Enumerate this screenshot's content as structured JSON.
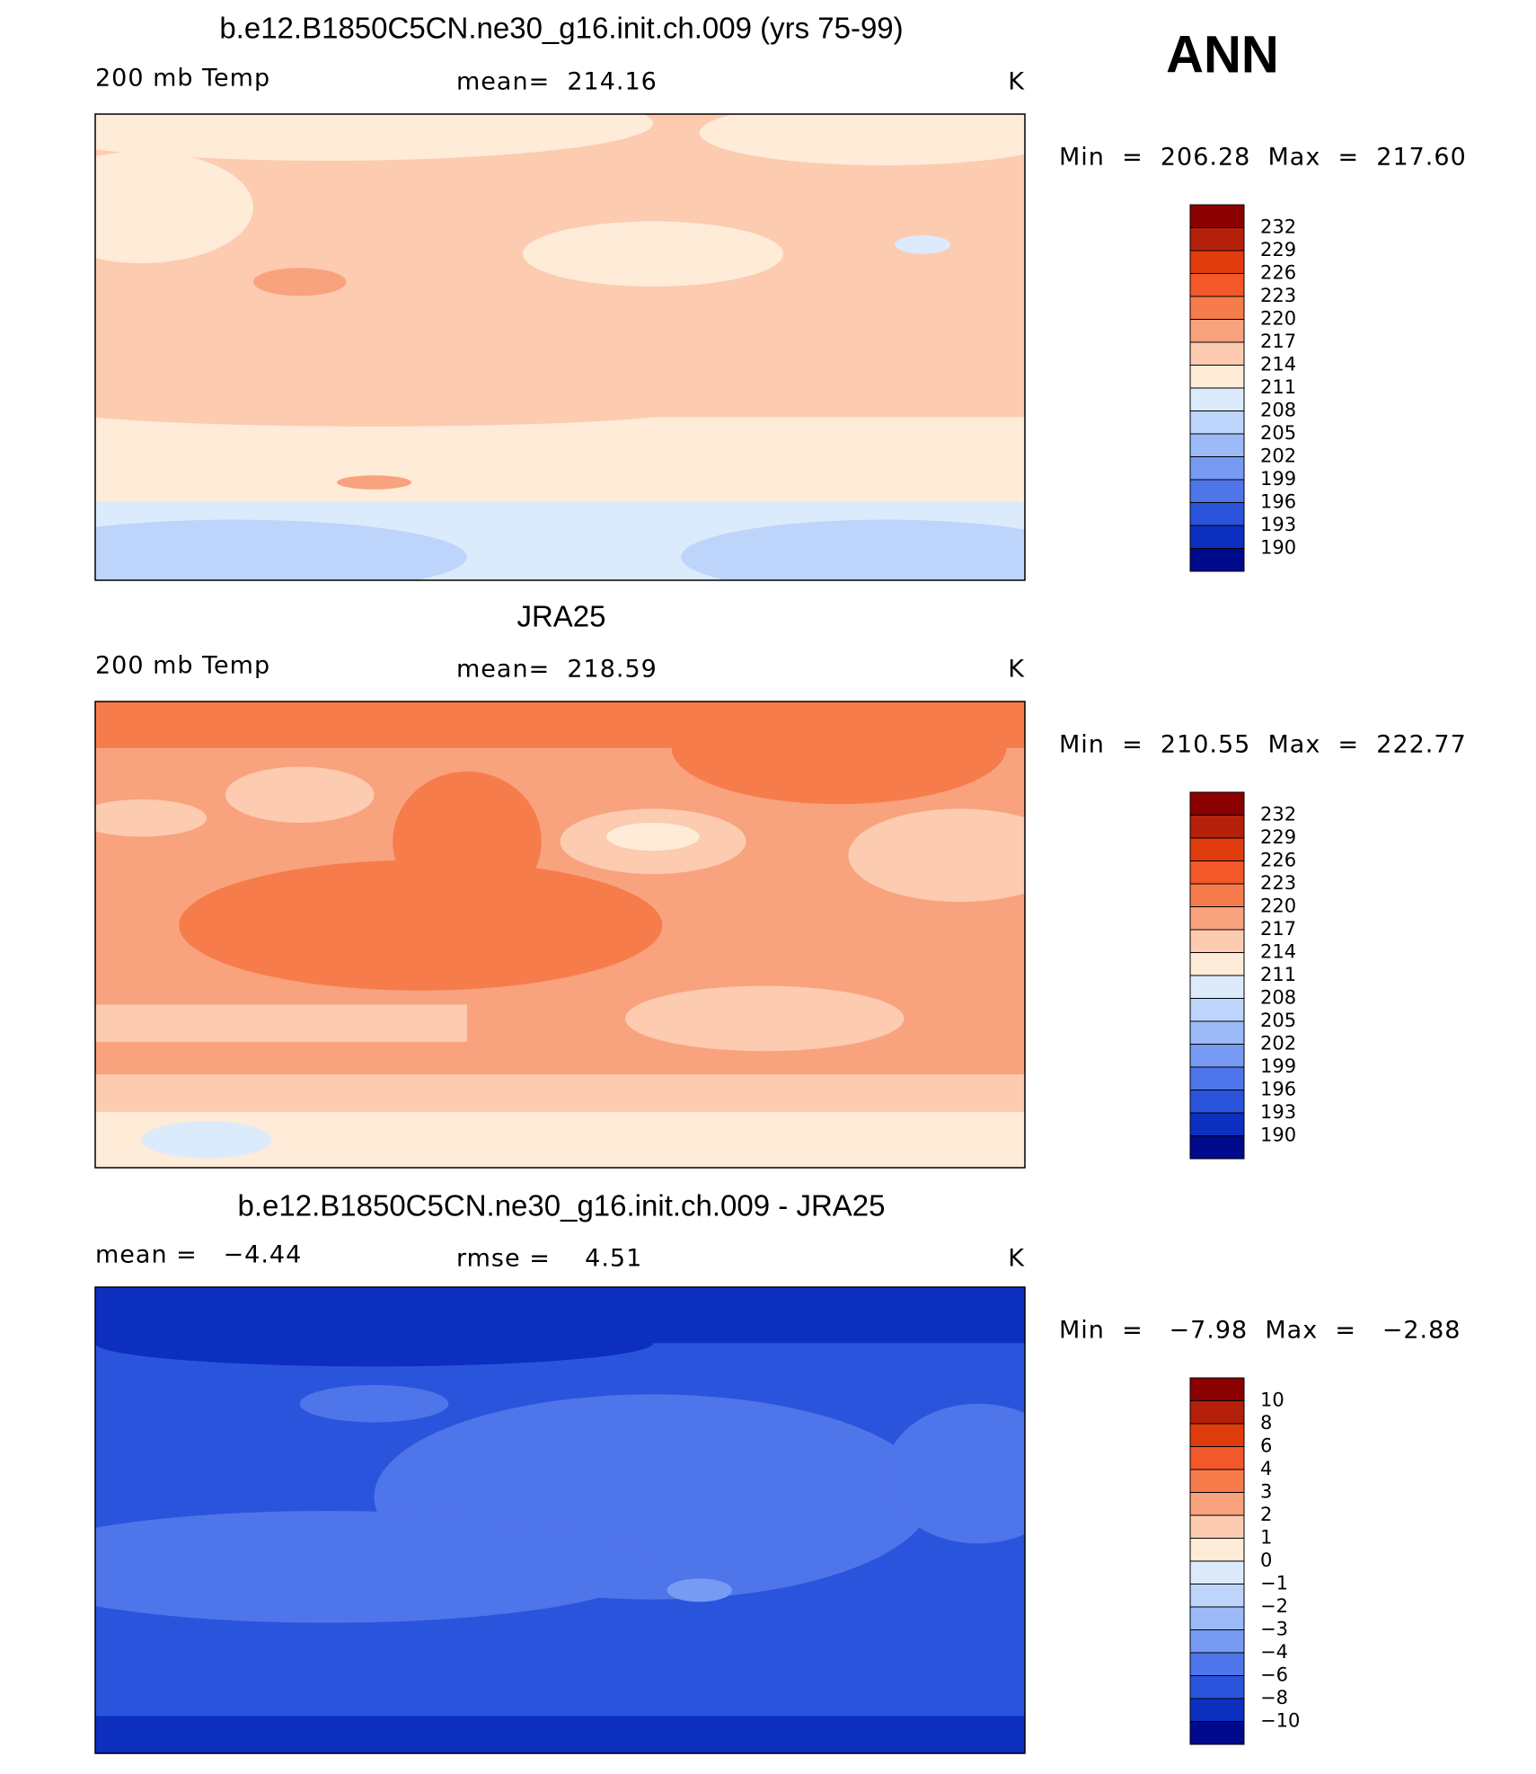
{
  "header": "ANN",
  "panels": [
    {
      "title": "b.e12.B1850C5CN.ne30_g16.init.ch.009 (yrs 75-99)",
      "left": "200 mb Temp",
      "center": "mean=  214.16",
      "units": "K",
      "range": "Min  =  206.28  Max  =  217.60",
      "colorbar": {
        "levels": [
          232,
          229,
          226,
          223,
          220,
          217,
          214,
          211,
          208,
          205,
          202,
          199,
          196,
          193,
          190
        ],
        "colors": [
          "#8b0000",
          "#b5200a",
          "#e03c0e",
          "#f2582a",
          "#f77c4c",
          "#f9a27e",
          "#fccbb0",
          "#feebd8",
          "#dcebfc",
          "#bdd4fb",
          "#9cbaf8",
          "#779af3",
          "#4f75ea",
          "#2a54dc",
          "#0c2fc0",
          "#000a8c"
        ]
      }
    },
    {
      "title": "JRA25",
      "left": "200 mb Temp",
      "center": "mean=  218.59",
      "units": "K",
      "range": "Min  =  210.55  Max  =  222.77",
      "colorbar": {
        "levels": [
          232,
          229,
          226,
          223,
          220,
          217,
          214,
          211,
          208,
          205,
          202,
          199,
          196,
          193,
          190
        ],
        "colors": [
          "#8b0000",
          "#b5200a",
          "#e03c0e",
          "#f2582a",
          "#f77c4c",
          "#f9a27e",
          "#fccbb0",
          "#feebd8",
          "#dcebfc",
          "#bdd4fb",
          "#9cbaf8",
          "#779af3",
          "#4f75ea",
          "#2a54dc",
          "#0c2fc0",
          "#000a8c"
        ]
      }
    },
    {
      "title": "b.e12.B1850C5CN.ne30_g16.init.ch.009 - JRA25",
      "left": "mean =   −4.44",
      "center": "rmse =    4.51",
      "units": "K",
      "range": "Min  =   −7.98  Max  =   −2.88",
      "colorbar": {
        "levels": [
          10,
          8,
          6,
          4,
          3,
          2,
          1,
          0,
          {
            "value": -1,
            "label": "−1"
          },
          {
            "value": -2,
            "label": "−2"
          },
          {
            "value": -3,
            "label": "−3"
          },
          {
            "value": -4,
            "label": "−4"
          },
          {
            "value": -6,
            "label": "−6"
          },
          {
            "value": -8,
            "label": "−8"
          },
          {
            "value": -10,
            "label": "−10"
          }
        ],
        "colors": [
          "#8b0000",
          "#b5200a",
          "#e03c0e",
          "#f2582a",
          "#f77c4c",
          "#f9a27e",
          "#fccbb0",
          "#feebd8",
          "#dcebfc",
          "#bdd4fb",
          "#9cbaf8",
          "#779af3",
          "#4f75ea",
          "#2a54dc",
          "#0c2fc0",
          "#000a8c"
        ]
      }
    }
  ]
}
